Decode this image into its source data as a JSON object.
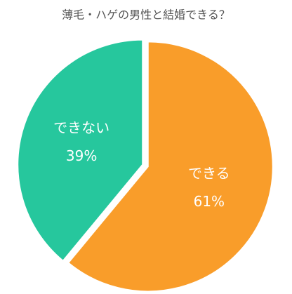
{
  "chart_data": {
    "type": "pie",
    "title": "薄毛・ハゲの男性と結婚できる？",
    "categories": [
      "できる",
      "できない"
    ],
    "values": [
      61,
      39
    ],
    "value_labels": [
      "61%",
      "39%"
    ],
    "colors": [
      "#f99d2a",
      "#26c79d"
    ]
  }
}
